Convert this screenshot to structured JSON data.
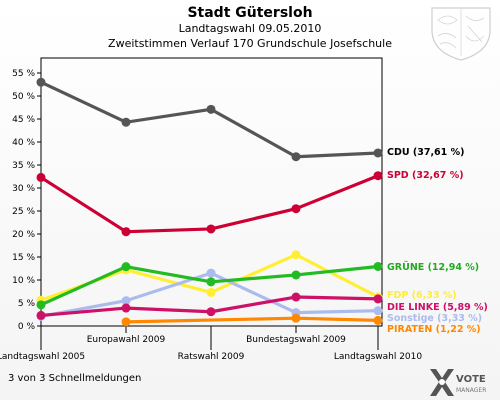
{
  "header": {
    "title": "Stadt Gütersloh",
    "subtitle1": "Landtagswahl 09.05.2010",
    "subtitle2": "Zweitstimmen Verlauf 170 Grundschule Josefschule"
  },
  "footer": {
    "note": "3 von 3 Schnellmeldungen"
  },
  "logo": {
    "line1": "VOTE",
    "line2": "MANAGER",
    "icon": "x-logo-icon",
    "crest": "nrw-crest-icon"
  },
  "chart_data": {
    "type": "line",
    "categories": [
      "Landtagswahl 2005",
      "Europawahl 2009",
      "Ratswahl 2009",
      "Bundestagswahl 2009",
      "Landtagswahl 2010"
    ],
    "ylim": [
      0,
      55
    ],
    "yticks": [
      0,
      5,
      10,
      15,
      20,
      25,
      30,
      35,
      40,
      45,
      50,
      55
    ],
    "ytick_labels": [
      "0 %",
      "5 %",
      "10 %",
      "15 %",
      "20 %",
      "25 %",
      "30 %",
      "35 %",
      "40 %",
      "45 %",
      "50 %",
      "55 %"
    ],
    "grid": false,
    "series": [
      {
        "name": "CDU",
        "label": "CDU (37,61 %)",
        "color": "#555555",
        "label_color": "#000000",
        "values": [
          53.0,
          44.3,
          47.1,
          36.8,
          37.61
        ]
      },
      {
        "name": "SPD",
        "label": "SPD (32,67 %)",
        "color": "#cc0033",
        "label_color": "#cc0033",
        "values": [
          32.3,
          20.5,
          21.1,
          25.5,
          32.67
        ]
      },
      {
        "name": "GRÜNE",
        "label": "GRÜNE (12,94 %)",
        "color": "#22bb22",
        "label_color": "#22aa22",
        "values": [
          4.6,
          12.9,
          9.6,
          11.1,
          12.94
        ]
      },
      {
        "name": "FDP",
        "label": "FDP (6,33 %)",
        "color": "#ffee33",
        "label_color": "#ffee33",
        "values": [
          5.6,
          12.2,
          7.3,
          15.5,
          6.33
        ]
      },
      {
        "name": "DIE LINKE",
        "label": "DIE LINKE (5,89 %)",
        "color": "#cc1166",
        "label_color": "#cc1166",
        "values": [
          2.3,
          3.9,
          3.1,
          6.3,
          5.89
        ]
      },
      {
        "name": "Sonstige",
        "label": "Sonstige (3,33 %)",
        "color": "#aabbee",
        "label_color": "#aabbee",
        "values": [
          2.1,
          5.5,
          11.5,
          2.9,
          3.33
        ]
      },
      {
        "name": "PIRATEN",
        "label": "PIRATEN (1,22 %)",
        "color": "#ff8800",
        "label_color": "#ff8800",
        "values": [
          null,
          0.9,
          null,
          1.7,
          1.22
        ]
      }
    ]
  }
}
